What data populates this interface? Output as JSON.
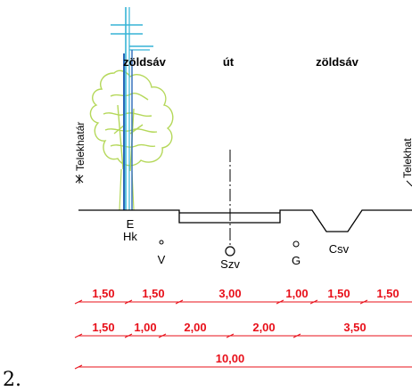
{
  "figure_number": "2.",
  "zones": {
    "left_green": "zöldsáv",
    "road": "út",
    "right_green": "zöldsáv"
  },
  "property_line_left": "Telekhatár",
  "property_line_right": "Telekhat",
  "utilities": {
    "E": "E",
    "Hk": "Hk",
    "V": "V",
    "Szv": "Szv",
    "G": "G",
    "Csv": "Csv"
  },
  "dimension_rows": [
    [
      "1,50",
      "1,50",
      "3,00",
      "1,00",
      "1,50",
      "1,50"
    ],
    [
      "1,50",
      "1,00",
      "2,00",
      "2,00",
      "3,50"
    ],
    [
      "10,00"
    ]
  ],
  "colors": {
    "dimension": "#e8101a",
    "tree": "#b5d85a",
    "pole_cyan": "#36b4d6",
    "pole_blue": "#2a68b8",
    "ground": "#000000"
  }
}
